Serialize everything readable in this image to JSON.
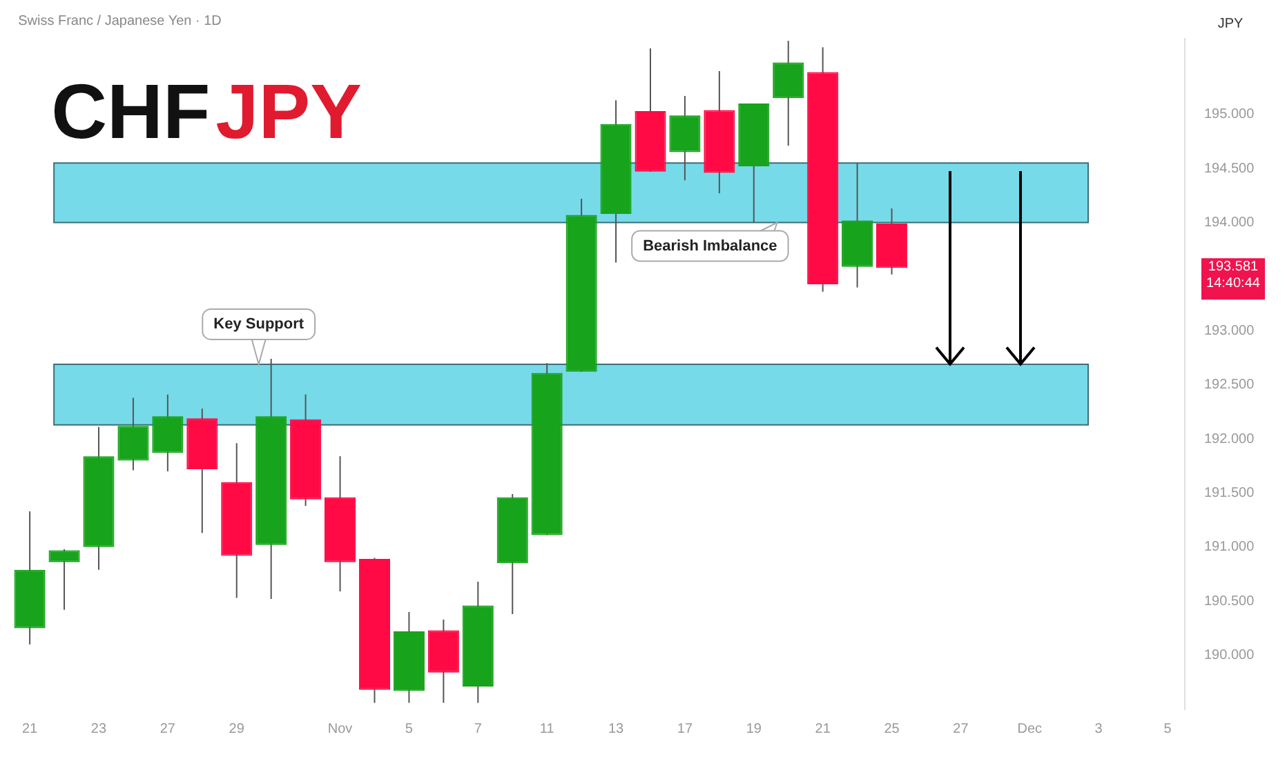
{
  "chart_data": {
    "type": "candlestick",
    "title": "CHFJPY",
    "subtitle": "Swiss Franc / Japanese Yen · 1D",
    "ylabel": "JPY",
    "categories": [
      "21",
      null,
      "23",
      null,
      "27",
      null,
      "29",
      null,
      null,
      "Nov",
      null,
      "5",
      null,
      "7",
      null,
      "11",
      null,
      "13",
      null,
      "17",
      null,
      "19",
      null,
      "21",
      null,
      "25",
      null,
      "27",
      null,
      "Dec",
      null,
      "3",
      null,
      "5"
    ],
    "ohlc": [
      [
        190.25,
        191.33,
        190.1,
        190.79
      ],
      [
        190.86,
        190.98,
        190.42,
        190.97
      ],
      [
        191.0,
        192.11,
        190.79,
        191.84
      ],
      [
        191.8,
        192.38,
        191.71,
        192.12
      ],
      [
        191.87,
        192.41,
        191.7,
        192.21
      ],
      [
        192.19,
        192.28,
        191.13,
        191.72
      ],
      [
        191.6,
        191.96,
        190.53,
        190.92
      ],
      [
        191.02,
        192.74,
        190.52,
        192.21
      ],
      [
        192.18,
        192.41,
        191.38,
        191.44
      ],
      [
        191.46,
        191.84,
        190.59,
        190.86
      ],
      [
        190.89,
        190.9,
        189.56,
        189.68
      ],
      [
        189.67,
        190.4,
        189.56,
        190.22
      ],
      [
        190.23,
        190.33,
        189.56,
        189.84
      ],
      [
        189.71,
        190.68,
        189.56,
        190.46
      ],
      [
        190.85,
        191.49,
        190.38,
        191.46
      ],
      [
        191.11,
        192.7,
        191.11,
        192.61
      ],
      [
        192.62,
        194.22,
        192.62,
        194.07
      ],
      [
        194.08,
        195.13,
        193.63,
        194.91
      ],
      [
        195.03,
        195.61,
        194.47,
        194.47
      ],
      [
        194.65,
        195.17,
        194.39,
        194.99
      ],
      [
        195.04,
        195.4,
        194.27,
        194.46
      ],
      [
        194.52,
        195.1,
        194.0,
        195.1
      ],
      [
        195.15,
        195.68,
        194.71,
        195.48
      ],
      [
        195.39,
        195.62,
        193.36,
        193.43
      ],
      [
        193.59,
        194.55,
        193.4,
        194.02
      ],
      [
        193.99,
        194.13,
        193.52,
        193.58
      ],
      null,
      null,
      null,
      null,
      null,
      null,
      null,
      null
    ],
    "colors": [
      "#17a31b",
      "#17a31b",
      "#17a31b",
      "#17a31b",
      "#17a31b",
      "#ff0a45",
      "#ff0a45",
      "#17a31b",
      "#ff0a45",
      "#ff0a45",
      "#ff0a45",
      "#17a31b",
      "#ff0a45",
      "#17a31b",
      "#17a31b",
      "#17a31b",
      "#17a31b",
      "#17a31b",
      "#ff0a45",
      "#17a31b",
      "#ff0a45",
      "#17a31b",
      "#17a31b",
      "#ff0a45",
      "#17a31b",
      "#ff0a45",
      null,
      null,
      null,
      null,
      null,
      null,
      null,
      null
    ],
    "ylim": [
      189.5,
      195.7
    ],
    "yticks": [
      {
        "value": 190,
        "label": "190.000"
      },
      {
        "value": 190.5,
        "label": "190.500"
      },
      {
        "value": 191,
        "label": "191.000"
      },
      {
        "value": 191.5,
        "label": "191.500"
      },
      {
        "value": 192,
        "label": "192.000"
      },
      {
        "value": 192.5,
        "label": "192.500"
      },
      {
        "value": 193,
        "label": "193.000"
      },
      {
        "value": 194,
        "label": "194.000"
      },
      {
        "value": 194.5,
        "label": "194.500"
      },
      {
        "value": 195,
        "label": "195.000"
      }
    ],
    "bands": [
      {
        "axis": "y",
        "from": 192.13,
        "to": 192.69,
        "label": "Key Support",
        "color": "#5fd3e4"
      },
      {
        "axis": "y",
        "from": 194.0,
        "to": 194.55,
        "label": "Bearish Imbalance",
        "color": "#5fd3e4"
      }
    ],
    "annotations": [
      "193.581",
      "14:40:44"
    ],
    "grid": false,
    "legend": false
  }
}
